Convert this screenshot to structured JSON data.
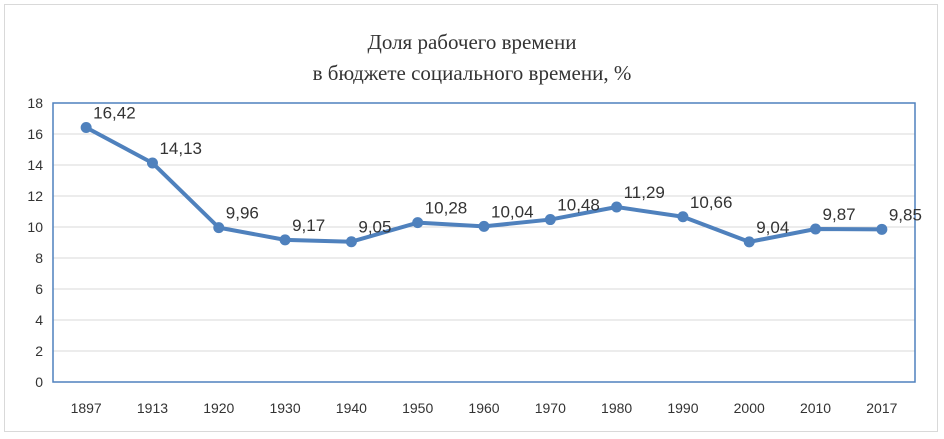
{
  "chart_data": {
    "type": "line",
    "title": [
      "Доля рабочего времени",
      "в бюджете социального времени, %"
    ],
    "categories": [
      "1897",
      "1913",
      "1920",
      "1930",
      "1940",
      "1950",
      "1960",
      "1970",
      "1980",
      "1990",
      "2000",
      "2010",
      "2017"
    ],
    "series": [
      {
        "values": [
          16.42,
          14.13,
          9.96,
          9.17,
          9.05,
          10.28,
          10.04,
          10.48,
          11.29,
          10.66,
          9.04,
          9.87,
          9.85
        ],
        "labels": [
          "16,42",
          "14,13",
          "9,96",
          "9,17",
          "9,05",
          "10,28",
          "10,04",
          "10,48",
          "11,29",
          "10,66",
          "9,04",
          "9,87",
          "9,85"
        ],
        "color": "#4f81bd"
      }
    ],
    "ylim": [
      0,
      18
    ],
    "yticks": [
      0,
      2,
      4,
      6,
      8,
      10,
      12,
      14,
      16,
      18
    ],
    "grid": true,
    "legend": "none",
    "colors": {
      "line": "#4f81bd",
      "grid": "#d9d9d9",
      "plot_border": "#4f81bd"
    }
  }
}
